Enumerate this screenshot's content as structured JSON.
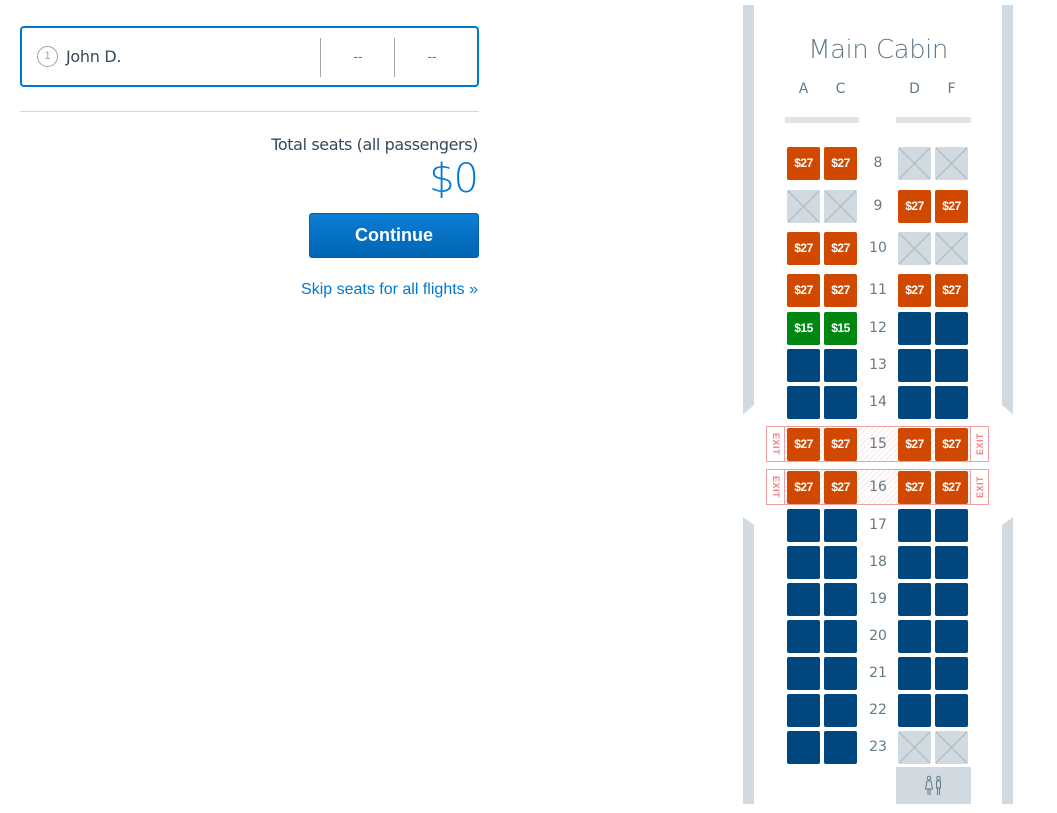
{
  "passenger": {
    "number": "1",
    "name": "John D.",
    "seat_flight_1": "--",
    "seat_flight_2": "--"
  },
  "summary": {
    "total_label": "Total seats (all passengers)",
    "total_value": "$0",
    "continue_label": "Continue",
    "skip_label": "Skip seats for all flights »"
  },
  "seatmap": {
    "cabin_title": "Main Cabin",
    "columns": [
      "A",
      "C",
      "D",
      "F"
    ],
    "exit_label": "EXIT",
    "lavatory_icon": "restroom-icon",
    "colors": {
      "paid": "#d14900",
      "preferred": "#008712",
      "occupied": "#00467f",
      "blocked": "#d0dae0",
      "accent": "#0078d2"
    },
    "rows": [
      {
        "row": "8",
        "A": {
          "type": "paid",
          "price": "$27"
        },
        "C": {
          "type": "paid",
          "price": "$27"
        },
        "D": {
          "type": "blocked"
        },
        "F": {
          "type": "blocked"
        }
      },
      {
        "row": "9",
        "A": {
          "type": "blocked"
        },
        "C": {
          "type": "blocked"
        },
        "D": {
          "type": "paid",
          "price": "$27"
        },
        "F": {
          "type": "paid",
          "price": "$27"
        }
      },
      {
        "row": "10",
        "A": {
          "type": "paid",
          "price": "$27"
        },
        "C": {
          "type": "paid",
          "price": "$27"
        },
        "D": {
          "type": "blocked"
        },
        "F": {
          "type": "blocked"
        }
      },
      {
        "row": "11",
        "A": {
          "type": "paid",
          "price": "$27"
        },
        "C": {
          "type": "paid",
          "price": "$27"
        },
        "D": {
          "type": "paid",
          "price": "$27"
        },
        "F": {
          "type": "paid",
          "price": "$27"
        }
      },
      {
        "row": "12",
        "A": {
          "type": "preferred",
          "price": "$15"
        },
        "C": {
          "type": "preferred",
          "price": "$15"
        },
        "D": {
          "type": "occupied"
        },
        "F": {
          "type": "occupied"
        }
      },
      {
        "row": "13",
        "A": {
          "type": "occupied"
        },
        "C": {
          "type": "occupied"
        },
        "D": {
          "type": "occupied"
        },
        "F": {
          "type": "occupied"
        }
      },
      {
        "row": "14",
        "A": {
          "type": "occupied"
        },
        "C": {
          "type": "occupied"
        },
        "D": {
          "type": "occupied"
        },
        "F": {
          "type": "occupied"
        }
      },
      {
        "row": "15",
        "exit": true,
        "A": {
          "type": "paid",
          "price": "$27"
        },
        "C": {
          "type": "paid",
          "price": "$27"
        },
        "D": {
          "type": "paid",
          "price": "$27"
        },
        "F": {
          "type": "paid",
          "price": "$27"
        }
      },
      {
        "row": "16",
        "exit": true,
        "A": {
          "type": "paid",
          "price": "$27"
        },
        "C": {
          "type": "paid",
          "price": "$27"
        },
        "D": {
          "type": "paid",
          "price": "$27"
        },
        "F": {
          "type": "paid",
          "price": "$27"
        }
      },
      {
        "row": "17",
        "A": {
          "type": "occupied"
        },
        "C": {
          "type": "occupied"
        },
        "D": {
          "type": "occupied"
        },
        "F": {
          "type": "occupied"
        }
      },
      {
        "row": "18",
        "A": {
          "type": "occupied"
        },
        "C": {
          "type": "occupied"
        },
        "D": {
          "type": "occupied"
        },
        "F": {
          "type": "occupied"
        }
      },
      {
        "row": "19",
        "A": {
          "type": "occupied"
        },
        "C": {
          "type": "occupied"
        },
        "D": {
          "type": "occupied"
        },
        "F": {
          "type": "occupied"
        }
      },
      {
        "row": "20",
        "A": {
          "type": "occupied"
        },
        "C": {
          "type": "occupied"
        },
        "D": {
          "type": "occupied"
        },
        "F": {
          "type": "occupied"
        }
      },
      {
        "row": "21",
        "A": {
          "type": "occupied"
        },
        "C": {
          "type": "occupied"
        },
        "D": {
          "type": "occupied"
        },
        "F": {
          "type": "occupied"
        }
      },
      {
        "row": "22",
        "A": {
          "type": "occupied"
        },
        "C": {
          "type": "occupied"
        },
        "D": {
          "type": "occupied"
        },
        "F": {
          "type": "occupied"
        }
      },
      {
        "row": "23",
        "A": {
          "type": "occupied"
        },
        "C": {
          "type": "occupied"
        },
        "D": {
          "type": "blocked"
        },
        "F": {
          "type": "blocked"
        }
      }
    ]
  }
}
